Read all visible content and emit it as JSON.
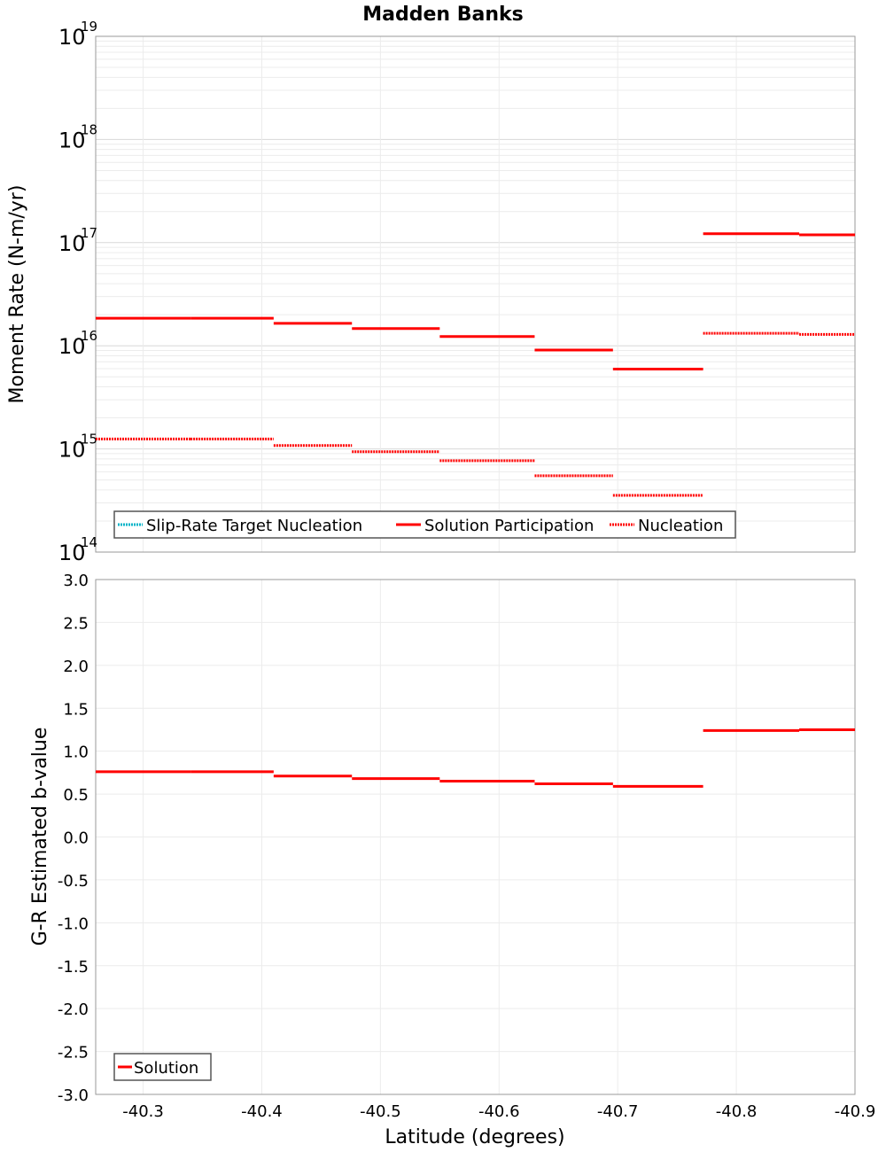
{
  "chart_data": [
    {
      "type": "line",
      "title": "Madden Banks",
      "xlabel": "",
      "ylabel": "Moment Rate (N-m/yr)",
      "yscale": "log",
      "ylim": [
        100000000000000.0,
        1e+19
      ],
      "xlim": [
        -40.26,
        -40.9
      ],
      "x_ticks": [
        "-40.3",
        "-40.4",
        "-40.5",
        "-40.6",
        "-40.7",
        "-40.8",
        "-40.9"
      ],
      "y_ticks": [
        {
          "base": "10",
          "exp": "14"
        },
        {
          "base": "10",
          "exp": "15"
        },
        {
          "base": "10",
          "exp": "16"
        },
        {
          "base": "10",
          "exp": "17"
        },
        {
          "base": "10",
          "exp": "18"
        },
        {
          "base": "10",
          "exp": "19"
        }
      ],
      "grid": true,
      "legend_position": "bottom-left",
      "series": [
        {
          "name": "Slip-Rate Target Nucleation",
          "color": "#00b4c8",
          "style": "dotted",
          "segments": []
        },
        {
          "name": "Solution Participation",
          "color": "#ff0000",
          "style": "solid",
          "segments": [
            {
              "x0": -40.26,
              "x1": -40.34,
              "y": 1.85e+16
            },
            {
              "x0": -40.34,
              "x1": -40.41,
              "y": 1.85e+16
            },
            {
              "x0": -40.41,
              "x1": -40.476,
              "y": 1.65e+16
            },
            {
              "x0": -40.476,
              "x1": -40.55,
              "y": 1.47e+16
            },
            {
              "x0": -40.55,
              "x1": -40.63,
              "y": 1.23e+16
            },
            {
              "x0": -40.63,
              "x1": -40.696,
              "y": 9100000000000000.0
            },
            {
              "x0": -40.696,
              "x1": -40.772,
              "y": 5950000000000000.0
            },
            {
              "x0": -40.772,
              "x1": -40.853,
              "y": 1.22e+17
            },
            {
              "x0": -40.853,
              "x1": -40.9,
              "y": 1.19e+17
            }
          ]
        },
        {
          "name": "Nucleation",
          "color": "#ff0000",
          "style": "dotted",
          "segments": [
            {
              "x0": -40.26,
              "x1": -40.34,
              "y": 1250000000000000.0
            },
            {
              "x0": -40.34,
              "x1": -40.41,
              "y": 1250000000000000.0
            },
            {
              "x0": -40.41,
              "x1": -40.476,
              "y": 1080000000000000.0
            },
            {
              "x0": -40.476,
              "x1": -40.55,
              "y": 940000000000000.0
            },
            {
              "x0": -40.55,
              "x1": -40.63,
              "y": 770000000000000.0
            },
            {
              "x0": -40.63,
              "x1": -40.696,
              "y": 550000000000000.0
            },
            {
              "x0": -40.696,
              "x1": -40.772,
              "y": 355000000000000.0
            },
            {
              "x0": -40.772,
              "x1": -40.853,
              "y": 1.32e+16
            },
            {
              "x0": -40.853,
              "x1": -40.9,
              "y": 1.29e+16
            }
          ]
        }
      ]
    },
    {
      "type": "line",
      "title": "",
      "xlabel": "Latitude (degrees)",
      "ylabel": "G-R Estimated b-value",
      "ylim": [
        -3.0,
        3.0
      ],
      "xlim": [
        -40.26,
        -40.9
      ],
      "x_ticks": [
        "-40.3",
        "-40.4",
        "-40.5",
        "-40.6",
        "-40.7",
        "-40.8",
        "-40.9"
      ],
      "y_ticks": [
        "-3.0",
        "-2.5",
        "-2.0",
        "-1.5",
        "-1.0",
        "-0.5",
        "0.0",
        "0.5",
        "1.0",
        "1.5",
        "2.0",
        "2.5",
        "3.0"
      ],
      "grid": true,
      "legend_position": "bottom-left",
      "series": [
        {
          "name": "Solution",
          "color": "#ff0000",
          "style": "solid",
          "segments": [
            {
              "x0": -40.26,
              "x1": -40.34,
              "y": 0.76
            },
            {
              "x0": -40.34,
              "x1": -40.41,
              "y": 0.76
            },
            {
              "x0": -40.41,
              "x1": -40.476,
              "y": 0.71
            },
            {
              "x0": -40.476,
              "x1": -40.55,
              "y": 0.68
            },
            {
              "x0": -40.55,
              "x1": -40.63,
              "y": 0.65
            },
            {
              "x0": -40.63,
              "x1": -40.696,
              "y": 0.62
            },
            {
              "x0": -40.696,
              "x1": -40.772,
              "y": 0.59
            },
            {
              "x0": -40.772,
              "x1": -40.853,
              "y": 1.24
            },
            {
              "x0": -40.853,
              "x1": -40.9,
              "y": 1.25
            }
          ]
        }
      ]
    }
  ]
}
